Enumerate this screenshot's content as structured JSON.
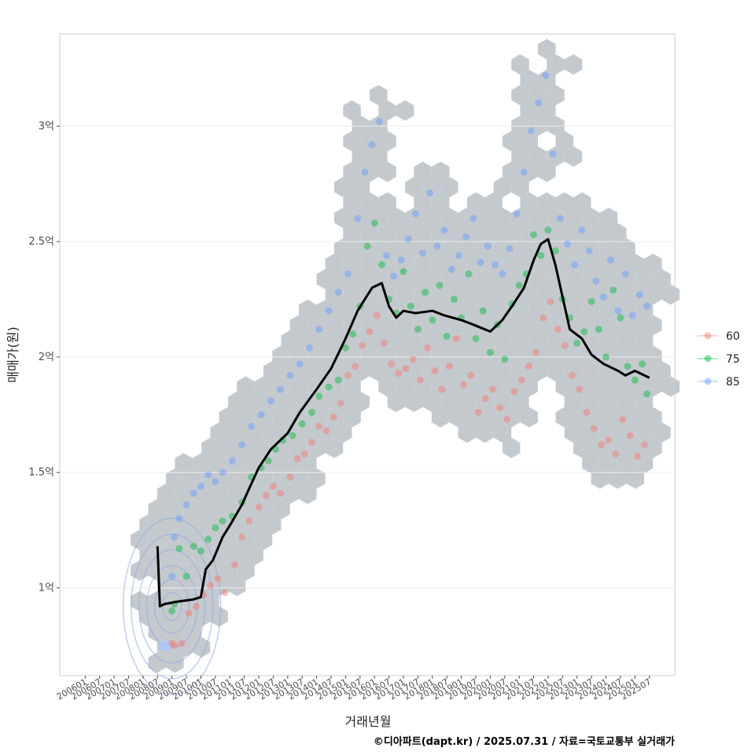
{
  "chart_data": {
    "type": "scatter",
    "title": "",
    "xlabel": "거래년월",
    "ylabel": "매매가(원)",
    "caption": "©디아파트(dapt.kr) / 2025.07.31 / 자료=국토교통부 실거래가",
    "y_unit": "억",
    "ylim": [
      0.62,
      3.4
    ],
    "yticks": [
      {
        "value": 1,
        "label": "1억"
      },
      {
        "value": 1.5,
        "label": "1.5억"
      },
      {
        "value": 2,
        "label": "2억"
      },
      {
        "value": 2.5,
        "label": "2.5억"
      },
      {
        "value": 3,
        "label": "3억"
      }
    ],
    "x_start": "2006-01",
    "x_end": "2025-07",
    "xticks": [
      "200601",
      "200607",
      "200701",
      "200707",
      "200801",
      "200807",
      "200901",
      "200907",
      "201001",
      "201007",
      "201101",
      "201107",
      "201201",
      "201207",
      "201301",
      "201307",
      "201401",
      "201407",
      "201501",
      "201507",
      "201601",
      "201607",
      "201701",
      "201707",
      "201801",
      "201807",
      "201901",
      "201907",
      "202001",
      "202007",
      "202101",
      "202107",
      "202201",
      "202207",
      "202301",
      "202307",
      "202401",
      "202407",
      "202501",
      "202507"
    ],
    "legend": {
      "position": "right",
      "entries": [
        {
          "name": "60",
          "color": "#F8766D"
        },
        {
          "name": "75",
          "color": "#00BA38"
        },
        {
          "name": "85",
          "color": "#619CFF"
        }
      ]
    },
    "hexbin": {
      "color": "#c4c9ce",
      "description": "density of all transactions"
    },
    "trend": {
      "name": "moving average price",
      "color": "#000000",
      "points": [
        [
          "2008-07",
          1.18
        ],
        [
          "2008-08",
          0.92
        ],
        [
          "2008-10",
          0.93
        ],
        [
          "2009-03",
          0.94
        ],
        [
          "2009-10",
          0.95
        ],
        [
          "2010-01",
          0.96
        ],
        [
          "2010-03",
          1.08
        ],
        [
          "2010-06",
          1.12
        ],
        [
          "2010-10",
          1.22
        ],
        [
          "2011-01",
          1.27
        ],
        [
          "2011-06",
          1.36
        ],
        [
          "2011-09",
          1.43
        ],
        [
          "2012-01",
          1.52
        ],
        [
          "2012-06",
          1.6
        ],
        [
          "2013-01",
          1.67
        ],
        [
          "2013-06",
          1.76
        ],
        [
          "2014-01",
          1.86
        ],
        [
          "2014-07",
          1.95
        ],
        [
          "2015-01",
          2.08
        ],
        [
          "2015-06",
          2.2
        ],
        [
          "2015-12",
          2.3
        ],
        [
          "2016-04",
          2.32
        ],
        [
          "2016-07",
          2.22
        ],
        [
          "2016-10",
          2.17
        ],
        [
          "2017-01",
          2.2
        ],
        [
          "2017-06",
          2.19
        ],
        [
          "2018-01",
          2.2
        ],
        [
          "2018-06",
          2.18
        ],
        [
          "2019-01",
          2.16
        ],
        [
          "2019-06",
          2.14
        ],
        [
          "2020-01",
          2.11
        ],
        [
          "2020-06",
          2.16
        ],
        [
          "2020-10",
          2.22
        ],
        [
          "2021-03",
          2.3
        ],
        [
          "2021-07",
          2.42
        ],
        [
          "2021-10",
          2.49
        ],
        [
          "2022-01",
          2.51
        ],
        [
          "2022-04",
          2.4
        ],
        [
          "2022-07",
          2.26
        ],
        [
          "2022-10",
          2.12
        ],
        [
          "2023-03",
          2.08
        ],
        [
          "2023-07",
          2.01
        ],
        [
          "2023-12",
          1.97
        ],
        [
          "2024-06",
          1.94
        ],
        [
          "2024-09",
          1.92
        ],
        [
          "2025-01",
          1.94
        ],
        [
          "2025-07",
          1.91
        ]
      ]
    },
    "series": [
      {
        "name": "60",
        "color": "#F8766D",
        "points": [
          [
            "2009-01",
            0.76
          ],
          [
            "2009-02",
            0.75
          ],
          [
            "2009-05",
            0.76
          ],
          [
            "2009-08",
            0.89
          ],
          [
            "2009-11",
            0.92
          ],
          [
            "2010-02",
            0.97
          ],
          [
            "2010-05",
            1.01
          ],
          [
            "2010-08",
            1.04
          ],
          [
            "2010-11",
            0.98
          ],
          [
            "2011-03",
            1.1
          ],
          [
            "2011-06",
            1.22
          ],
          [
            "2011-09",
            1.29
          ],
          [
            "2012-01",
            1.35
          ],
          [
            "2012-04",
            1.4
          ],
          [
            "2012-07",
            1.44
          ],
          [
            "2012-10",
            1.41
          ],
          [
            "2013-02",
            1.48
          ],
          [
            "2013-05",
            1.56
          ],
          [
            "2013-08",
            1.58
          ],
          [
            "2013-11",
            1.63
          ],
          [
            "2014-02",
            1.7
          ],
          [
            "2014-05",
            1.68
          ],
          [
            "2014-08",
            1.74
          ],
          [
            "2014-11",
            1.8
          ],
          [
            "2015-02",
            1.92
          ],
          [
            "2015-05",
            1.96
          ],
          [
            "2015-08",
            2.05
          ],
          [
            "2015-11",
            2.11
          ],
          [
            "2016-02",
            2.18
          ],
          [
            "2016-05",
            2.06
          ],
          [
            "2016-08",
            1.97
          ],
          [
            "2016-11",
            1.93
          ],
          [
            "2017-02",
            1.95
          ],
          [
            "2017-05",
            1.99
          ],
          [
            "2017-08",
            1.9
          ],
          [
            "2017-11",
            2.04
          ],
          [
            "2018-02",
            1.94
          ],
          [
            "2018-05",
            1.86
          ],
          [
            "2018-08",
            1.96
          ],
          [
            "2018-11",
            2.08
          ],
          [
            "2019-02",
            1.88
          ],
          [
            "2019-05",
            1.92
          ],
          [
            "2019-08",
            1.76
          ],
          [
            "2019-11",
            1.82
          ],
          [
            "2020-02",
            1.86
          ],
          [
            "2020-05",
            1.78
          ],
          [
            "2020-08",
            1.73
          ],
          [
            "2020-11",
            1.85
          ],
          [
            "2021-02",
            1.9
          ],
          [
            "2021-05",
            1.96
          ],
          [
            "2021-08",
            2.02
          ],
          [
            "2021-11",
            2.17
          ],
          [
            "2022-02",
            2.24
          ],
          [
            "2022-05",
            2.12
          ],
          [
            "2022-08",
            2.05
          ],
          [
            "2022-11",
            1.92
          ],
          [
            "2023-02",
            1.86
          ],
          [
            "2023-05",
            1.76
          ],
          [
            "2023-08",
            1.69
          ],
          [
            "2023-11",
            1.62
          ],
          [
            "2024-02",
            1.64
          ],
          [
            "2024-05",
            1.58
          ],
          [
            "2024-08",
            1.73
          ],
          [
            "2024-11",
            1.66
          ],
          [
            "2025-02",
            1.57
          ],
          [
            "2025-05",
            1.62
          ]
        ]
      },
      {
        "name": "75",
        "color": "#00BA38",
        "points": [
          [
            "2009-01",
            0.9
          ],
          [
            "2009-02",
            0.93
          ],
          [
            "2009-04",
            1.17
          ],
          [
            "2009-07",
            1.05
          ],
          [
            "2009-10",
            1.18
          ],
          [
            "2010-01",
            1.16
          ],
          [
            "2010-04",
            1.21
          ],
          [
            "2010-07",
            1.26
          ],
          [
            "2010-10",
            1.29
          ],
          [
            "2011-02",
            1.31
          ],
          [
            "2011-06",
            1.37
          ],
          [
            "2011-10",
            1.48
          ],
          [
            "2012-02",
            1.52
          ],
          [
            "2012-05",
            1.55
          ],
          [
            "2012-08",
            1.6
          ],
          [
            "2012-11",
            1.64
          ],
          [
            "2013-03",
            1.66
          ],
          [
            "2013-07",
            1.71
          ],
          [
            "2013-11",
            1.76
          ],
          [
            "2014-02",
            1.83
          ],
          [
            "2014-06",
            1.87
          ],
          [
            "2014-10",
            1.9
          ],
          [
            "2015-01",
            2.04
          ],
          [
            "2015-04",
            2.1
          ],
          [
            "2015-07",
            2.22
          ],
          [
            "2015-10",
            2.48
          ],
          [
            "2016-01",
            2.58
          ],
          [
            "2016-04",
            2.4
          ],
          [
            "2016-07",
            2.25
          ],
          [
            "2016-10",
            2.19
          ],
          [
            "2017-01",
            2.37
          ],
          [
            "2017-04",
            2.22
          ],
          [
            "2017-07",
            2.12
          ],
          [
            "2017-10",
            2.28
          ],
          [
            "2018-01",
            2.16
          ],
          [
            "2018-04",
            2.31
          ],
          [
            "2018-07",
            2.09
          ],
          [
            "2018-10",
            2.25
          ],
          [
            "2019-01",
            2.17
          ],
          [
            "2019-04",
            2.36
          ],
          [
            "2019-07",
            2.08
          ],
          [
            "2019-10",
            2.2
          ],
          [
            "2020-01",
            2.02
          ],
          [
            "2020-04",
            2.14
          ],
          [
            "2020-07",
            1.99
          ],
          [
            "2020-10",
            2.23
          ],
          [
            "2021-01",
            2.31
          ],
          [
            "2021-04",
            2.36
          ],
          [
            "2021-07",
            2.53
          ],
          [
            "2021-10",
            2.44
          ],
          [
            "2022-01",
            2.55
          ],
          [
            "2022-04",
            2.46
          ],
          [
            "2022-07",
            2.25
          ],
          [
            "2022-10",
            2.17
          ],
          [
            "2023-01",
            2.06
          ],
          [
            "2023-04",
            2.11
          ],
          [
            "2023-07",
            2.24
          ],
          [
            "2023-10",
            2.12
          ],
          [
            "2024-01",
            2.0
          ],
          [
            "2024-04",
            2.29
          ],
          [
            "2024-07",
            2.17
          ],
          [
            "2024-10",
            1.96
          ],
          [
            "2025-01",
            1.9
          ],
          [
            "2025-04",
            1.97
          ],
          [
            "2025-06",
            1.84
          ]
        ]
      },
      {
        "name": "85",
        "color": "#619CFF",
        "points": [
          [
            "2009-01",
            1.05
          ],
          [
            "2009-02",
            1.22
          ],
          [
            "2009-04",
            1.3
          ],
          [
            "2009-07",
            1.36
          ],
          [
            "2009-10",
            1.41
          ],
          [
            "2010-01",
            1.44
          ],
          [
            "2010-04",
            1.49
          ],
          [
            "2010-07",
            1.46
          ],
          [
            "2010-10",
            1.5
          ],
          [
            "2011-02",
            1.55
          ],
          [
            "2011-06",
            1.62
          ],
          [
            "2011-10",
            1.7
          ],
          [
            "2012-02",
            1.75
          ],
          [
            "2012-06",
            1.81
          ],
          [
            "2012-10",
            1.86
          ],
          [
            "2013-02",
            1.92
          ],
          [
            "2013-06",
            1.97
          ],
          [
            "2013-10",
            2.04
          ],
          [
            "2014-02",
            2.12
          ],
          [
            "2014-06",
            2.2
          ],
          [
            "2014-10",
            2.28
          ],
          [
            "2015-02",
            2.36
          ],
          [
            "2015-06",
            2.6
          ],
          [
            "2015-09",
            2.8
          ],
          [
            "2015-12",
            2.92
          ],
          [
            "2016-03",
            3.02
          ],
          [
            "2016-06",
            2.44
          ],
          [
            "2016-09",
            2.35
          ],
          [
            "2016-12",
            2.42
          ],
          [
            "2017-03",
            2.51
          ],
          [
            "2017-06",
            2.62
          ],
          [
            "2017-09",
            2.45
          ],
          [
            "2017-12",
            2.71
          ],
          [
            "2018-03",
            2.48
          ],
          [
            "2018-06",
            2.55
          ],
          [
            "2018-09",
            2.38
          ],
          [
            "2018-12",
            2.44
          ],
          [
            "2019-03",
            2.52
          ],
          [
            "2019-06",
            2.6
          ],
          [
            "2019-09",
            2.41
          ],
          [
            "2019-12",
            2.48
          ],
          [
            "2020-03",
            2.4
          ],
          [
            "2020-06",
            2.36
          ],
          [
            "2020-09",
            2.47
          ],
          [
            "2020-12",
            2.62
          ],
          [
            "2021-03",
            2.8
          ],
          [
            "2021-06",
            2.98
          ],
          [
            "2021-09",
            3.1
          ],
          [
            "2021-12",
            3.22
          ],
          [
            "2022-03",
            2.88
          ],
          [
            "2022-06",
            2.6
          ],
          [
            "2022-09",
            2.49
          ],
          [
            "2022-12",
            2.4
          ],
          [
            "2023-03",
            2.55
          ],
          [
            "2023-06",
            2.46
          ],
          [
            "2023-09",
            2.33
          ],
          [
            "2023-12",
            2.26
          ],
          [
            "2024-03",
            2.42
          ],
          [
            "2024-06",
            2.2
          ],
          [
            "2024-09",
            2.36
          ],
          [
            "2024-12",
            2.18
          ],
          [
            "2025-03",
            2.27
          ],
          [
            "2025-06",
            2.22
          ]
        ]
      }
    ]
  }
}
